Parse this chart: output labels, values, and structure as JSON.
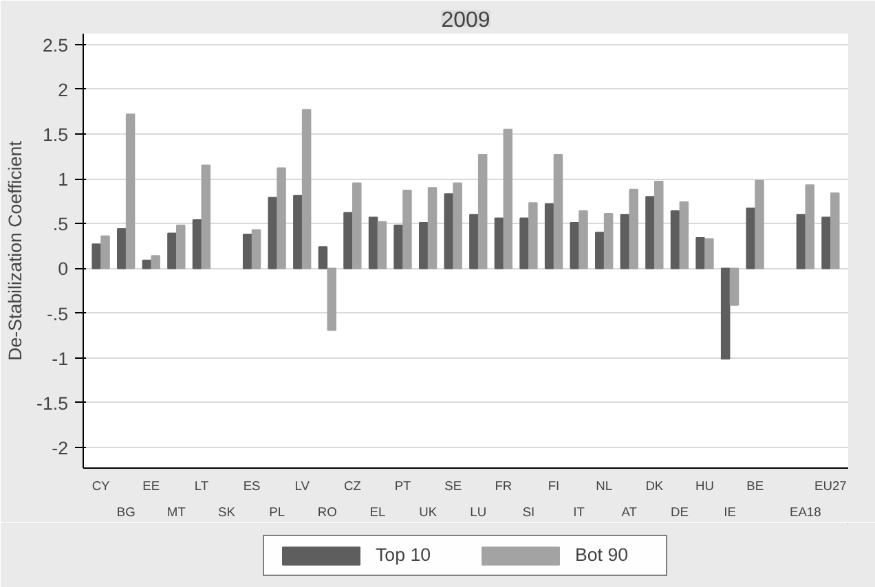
{
  "chart_data": {
    "type": "bar",
    "title": "2009",
    "ylabel": "De-Stabilization Coefficient",
    "categories": [
      "CY",
      "BG",
      "EE",
      "MT",
      "LT",
      "SK",
      "ES",
      "PL",
      "LV",
      "RO",
      "CZ",
      "EL",
      "PT",
      "UK",
      "SE",
      "LU",
      "FR",
      "SI",
      "FI",
      "IT",
      "NL",
      "AT",
      "DK",
      "DE",
      "HU",
      "IE",
      "BE",
      null,
      "EA18",
      "EU27"
    ],
    "series": [
      {
        "name": "Top 10",
        "color": "#5e5e5e",
        "values": [
          0.27,
          0.44,
          0.09,
          0.39,
          0.54,
          null,
          0.38,
          0.79,
          0.81,
          0.24,
          0.62,
          0.57,
          0.48,
          0.51,
          0.83,
          0.6,
          0.56,
          0.56,
          0.72,
          0.51,
          0.4,
          0.6,
          0.8,
          0.64,
          0.34,
          -1.01,
          0.67,
          null,
          0.6,
          0.57
        ]
      },
      {
        "name": "Bot 90",
        "color": "#a3a3a3",
        "values": [
          0.36,
          1.72,
          0.14,
          0.48,
          1.15,
          null,
          0.43,
          1.12,
          1.77,
          -0.69,
          0.95,
          0.52,
          0.87,
          0.9,
          0.95,
          1.27,
          1.55,
          0.73,
          1.27,
          0.64,
          0.61,
          0.88,
          0.97,
          0.74,
          0.33,
          -0.41,
          0.98,
          null,
          0.93,
          0.84
        ]
      }
    ],
    "ylim": [
      -2.23,
      2.62
    ],
    "yticks": [
      {
        "value": -2,
        "label": "-2"
      },
      {
        "value": -1.5,
        "label": "-1.5"
      },
      {
        "value": -1,
        "label": "-1"
      },
      {
        "value": -0.5,
        "label": "-.5"
      },
      {
        "value": 0,
        "label": "0"
      },
      {
        "value": 0.5,
        "label": ".5"
      },
      {
        "value": 1,
        "label": "1"
      },
      {
        "value": 1.5,
        "label": "1.5"
      },
      {
        "value": 2,
        "label": "2"
      },
      {
        "value": 2.5,
        "label": "2.5"
      }
    ],
    "grid": "y",
    "legend": "bottom"
  }
}
